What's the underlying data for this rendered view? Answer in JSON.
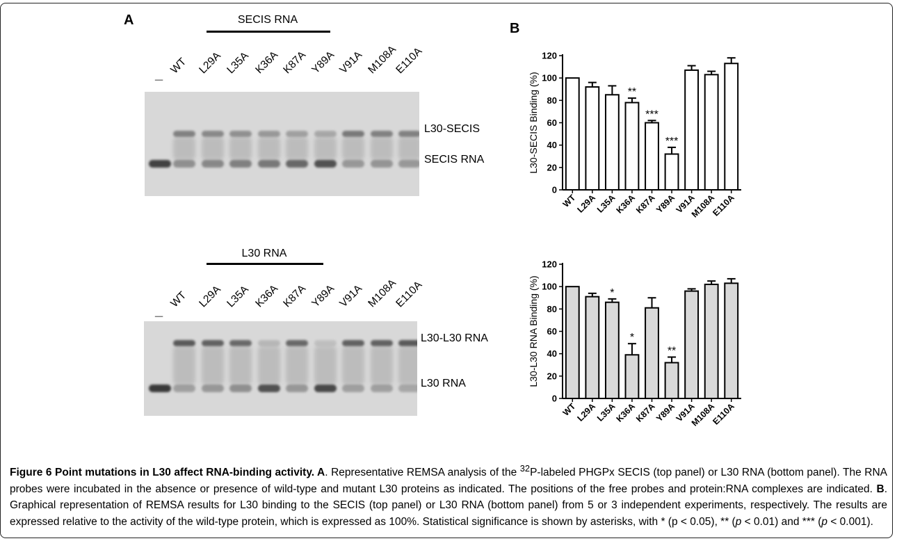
{
  "panel_a": {
    "letter": "A",
    "top_gel": {
      "group_label": "SECIS RNA",
      "dash_label": "_",
      "lanes": [
        "WT",
        "L29A",
        "L35A",
        "K36A",
        "K87A",
        "Y89A",
        "V91A",
        "M108A",
        "E110A"
      ],
      "upper_band_label": "L30-SECIS",
      "lower_band_label": "SECIS RNA"
    },
    "bottom_gel": {
      "group_label": "L30 RNA",
      "dash_label": "_",
      "lanes": [
        "WT",
        "L29A",
        "L35A",
        "K36A",
        "K87A",
        "Y89A",
        "V91A",
        "M108A",
        "E110A"
      ],
      "upper_band_label": "L30-L30 RNA",
      "lower_band_label": "L30 RNA"
    }
  },
  "panel_b": {
    "letter": "B"
  },
  "chart_data": [
    {
      "type": "bar",
      "categories": [
        "WT",
        "L29A",
        "L35A",
        "K36A",
        "K87A",
        "Y89A",
        "V91A",
        "M108A",
        "E110A"
      ],
      "values": [
        100,
        92,
        85,
        78,
        60,
        32,
        107,
        103,
        113
      ],
      "errors": [
        0,
        4,
        8,
        4,
        2,
        6,
        4,
        3,
        5
      ],
      "significance": [
        "",
        "",
        "",
        "**",
        "***",
        "***",
        "",
        "",
        ""
      ],
      "ylabel": "L30-SECIS Binding (%)",
      "ylim": [
        0,
        120
      ],
      "yticks": [
        0,
        20,
        40,
        60,
        80,
        100,
        120
      ],
      "bar_color": "#ffffff",
      "grid": false
    },
    {
      "type": "bar",
      "categories": [
        "WT",
        "L29A",
        "L35A",
        "K36A",
        "K87A",
        "Y89A",
        "V91A",
        "M108A",
        "E110A"
      ],
      "values": [
        100,
        91,
        86,
        39,
        81,
        32,
        96,
        102,
        103
      ],
      "errors": [
        0,
        3,
        3,
        10,
        9,
        5,
        2,
        3,
        4
      ],
      "significance": [
        "",
        "",
        "*",
        "*",
        "",
        "**",
        "",
        "",
        ""
      ],
      "ylabel": "L30-L30 RNA Binding (%)",
      "ylim": [
        0,
        120
      ],
      "yticks": [
        0,
        20,
        40,
        60,
        80,
        100,
        120
      ],
      "bar_color": "#d9d9d9",
      "grid": false
    }
  ],
  "caption": {
    "lead": "Figure 6 Point mutations in L30 affect RNA-binding activity. A",
    "p1": ". Representative REMSA analysis of the ",
    "sup": "32",
    "p2": "P-labeled PHGPx SECIS (top panel) or L30 RNA (bottom panel). The RNA probes were incubated in the absence or presence of wild-type and mutant L30 proteins as indicated. The positions of the free probes and protein:RNA complexes are indicated. ",
    "b_letter": "B",
    "p3": ". Graphical representation of REMSA results for L30 binding to the SECIS (top panel) or L30 RNA (bottom panel) from 5 or 3 independent experiments, respectively. The results are expressed relative to the activity of the wild-type protein, which is expressed as 100%. Statistical significance is shown by asterisks, with * (p < 0.05), ** (",
    "p_italic_1": "p",
    "p4": " < 0.01) and *** (",
    "p_italic_2": "p",
    "p5": " < 0.001)."
  },
  "colors": {
    "gel_background": "#d8d8d8",
    "band_dark": "#3a3a3a",
    "line": "#000000"
  }
}
